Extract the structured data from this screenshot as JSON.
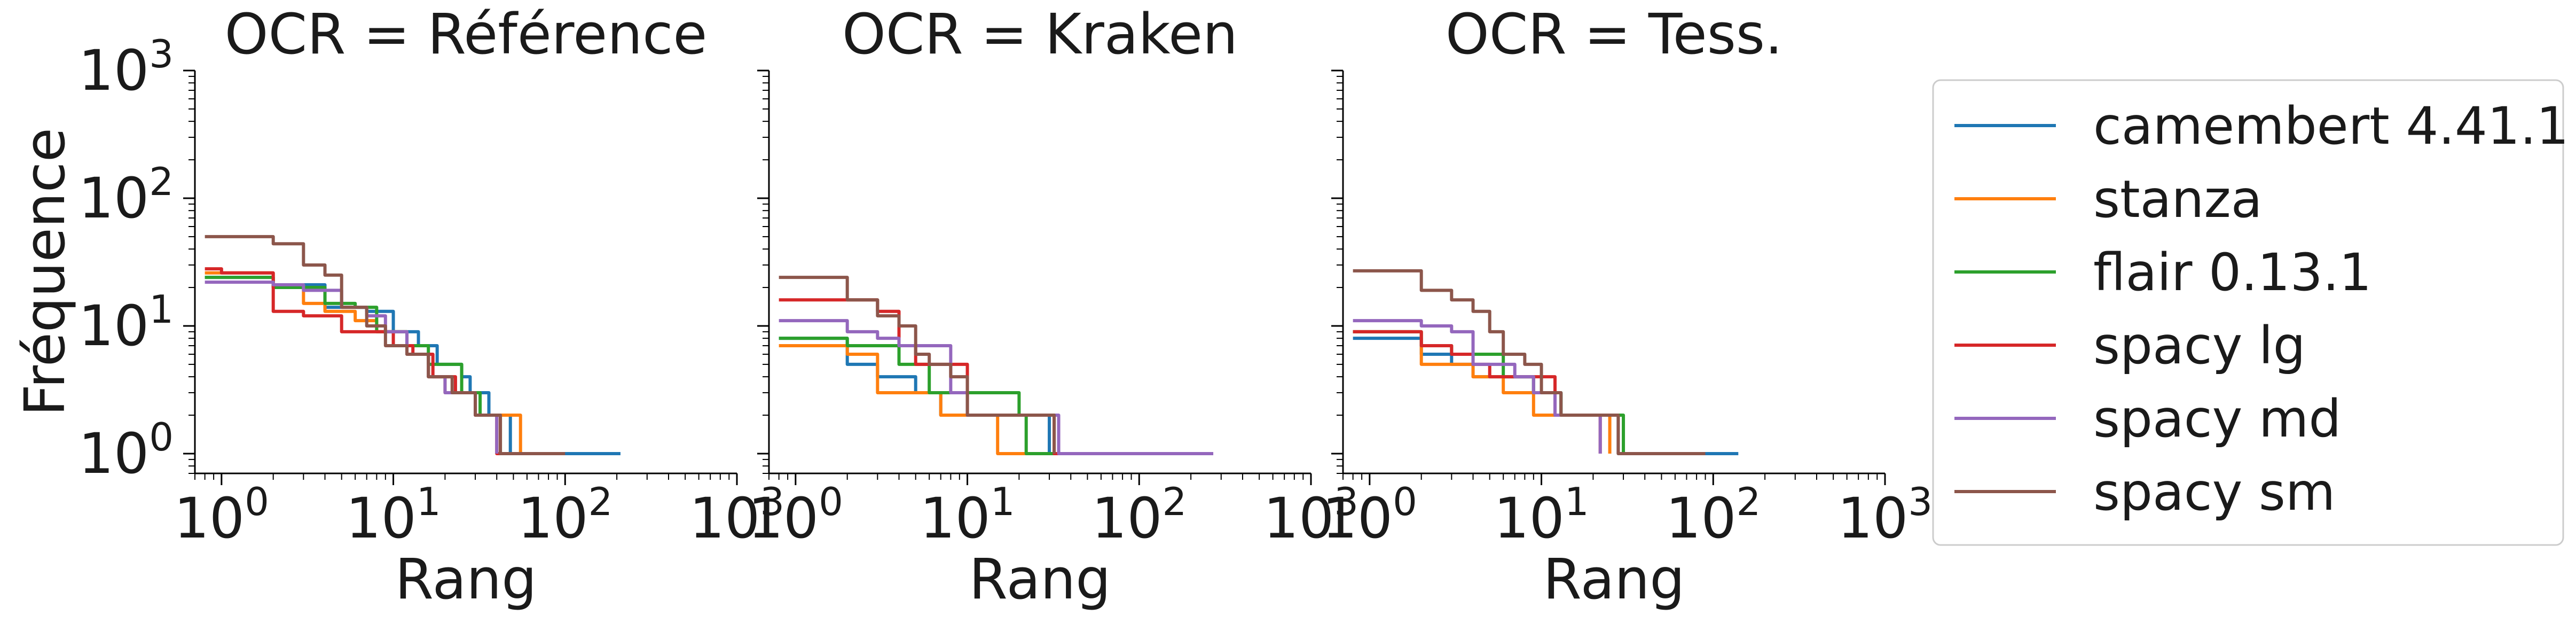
{
  "chart_data": [
    {
      "type": "line",
      "title": "OCR = Référence",
      "xlabel": "Rang",
      "ylabel": "Fréquence",
      "xscale": "log",
      "yscale": "log",
      "xlim": [
        0.7,
        1000
      ],
      "ylim": [
        0.7,
        1000
      ],
      "xticks": [
        "10^0",
        "10^1",
        "10^2",
        "10^3"
      ],
      "yticks": [
        "10^0",
        "10^1",
        "10^2",
        "10^3"
      ],
      "series": [
        {
          "name": "camembert 4.41.1",
          "x": [
            0.8,
            2,
            4,
            7,
            10,
            14,
            18,
            25,
            28,
            36,
            40,
            48,
            52,
            60,
            70,
            100,
            150,
            210
          ],
          "y": [
            24,
            21,
            14,
            13,
            9,
            7,
            5,
            4,
            3,
            2,
            2,
            1,
            1,
            1,
            1,
            1,
            1,
            1
          ]
        },
        {
          "name": "stanza",
          "x": [
            0.8,
            2,
            3,
            4,
            6,
            8,
            12,
            16,
            20,
            30,
            40,
            55
          ],
          "y": [
            26,
            20,
            15,
            13,
            11,
            9,
            6,
            4,
            3,
            2,
            2,
            1
          ]
        },
        {
          "name": "flair 0.13.1",
          "x": [
            0.8,
            2,
            4,
            6,
            8,
            12,
            16,
            25,
            32,
            42,
            60
          ],
          "y": [
            24,
            20,
            15,
            14,
            9,
            7,
            5,
            3,
            2,
            1,
            1
          ]
        },
        {
          "name": "spacy lg",
          "x": [
            0.8,
            1,
            2,
            3,
            5,
            7,
            10,
            13,
            17,
            23,
            30,
            40,
            45
          ],
          "y": [
            28,
            26,
            13,
            12,
            9,
            9,
            7,
            6,
            4,
            3,
            2,
            1,
            1
          ]
        },
        {
          "name": "spacy md",
          "x": [
            0.8,
            2,
            3,
            5,
            7,
            9,
            12,
            16,
            20,
            30,
            40
          ],
          "y": [
            22,
            21,
            19,
            14,
            12,
            9,
            6,
            4,
            3,
            2,
            1
          ]
        },
        {
          "name": "spacy sm",
          "x": [
            0.8,
            1,
            2,
            3,
            4,
            5,
            7,
            9,
            12,
            16,
            22,
            30,
            42,
            55,
            70,
            100
          ],
          "y": [
            50,
            50,
            44,
            30,
            25,
            14,
            10,
            7,
            6,
            4,
            3,
            2,
            1,
            1,
            1,
            1
          ]
        }
      ]
    },
    {
      "type": "line",
      "title": "OCR = Kraken",
      "xlabel": "Rang",
      "xscale": "log",
      "yscale": "log",
      "xlim": [
        0.7,
        1000
      ],
      "ylim": [
        0.7,
        1000
      ],
      "xticks": [
        "10^0",
        "10^1",
        "10^2",
        "10^3"
      ],
      "series": [
        {
          "name": "camembert 4.41.1",
          "x": [
            0.8,
            1,
            2,
            3,
            5,
            7,
            12,
            15,
            20,
            26,
            30,
            35,
            60,
            100,
            150
          ],
          "y": [
            8,
            8,
            5,
            4,
            3,
            2,
            2,
            2,
            2,
            2,
            1,
            1,
            1,
            1,
            1
          ]
        },
        {
          "name": "stanza",
          "x": [
            0.8,
            1,
            2,
            3,
            5,
            7,
            12,
            15,
            20,
            30,
            45,
            70
          ],
          "y": [
            7,
            7,
            6,
            3,
            3,
            2,
            2,
            1,
            1,
            1,
            1,
            1
          ]
        },
        {
          "name": "flair 0.13.1",
          "x": [
            0.8,
            1,
            2,
            3,
            4,
            6,
            10,
            14,
            20,
            22,
            30,
            50
          ],
          "y": [
            8,
            8,
            7,
            7,
            5,
            3,
            3,
            3,
            2,
            1,
            1,
            1
          ]
        },
        {
          "name": "spacy lg",
          "x": [
            0.8,
            1,
            2,
            3,
            4,
            5,
            7,
            10,
            14,
            20,
            25,
            32,
            40
          ],
          "y": [
            16,
            16,
            16,
            13,
            7,
            5,
            5,
            2,
            2,
            2,
            2,
            1,
            1
          ]
        },
        {
          "name": "spacy md",
          "x": [
            0.8,
            1,
            2,
            3,
            4,
            5,
            7,
            8,
            10,
            14,
            20,
            28,
            34,
            80,
            150,
            270
          ],
          "y": [
            11,
            11,
            9,
            8,
            7,
            7,
            7,
            3,
            2,
            2,
            2,
            2,
            1,
            1,
            1,
            1
          ]
        },
        {
          "name": "spacy sm",
          "x": [
            0.8,
            1,
            2,
            3,
            4,
            5,
            6,
            8,
            10,
            14,
            20,
            25,
            32
          ],
          "y": [
            24,
            24,
            16,
            12,
            10,
            6,
            5,
            4,
            2,
            2,
            2,
            2,
            1
          ]
        }
      ]
    },
    {
      "type": "line",
      "title": "OCR = Tess.",
      "xlabel": "Rang",
      "xscale": "log",
      "yscale": "log",
      "xlim": [
        0.7,
        1000
      ],
      "ylim": [
        0.7,
        1000
      ],
      "xticks": [
        "10^0",
        "10^1",
        "10^2",
        "10^3"
      ],
      "series": [
        {
          "name": "camembert 4.41.1",
          "x": [
            0.8,
            1,
            2,
            3,
            4,
            6,
            9,
            13,
            18,
            25,
            28,
            40,
            70,
            100,
            140
          ],
          "y": [
            8,
            8,
            6,
            5,
            4,
            4,
            3,
            2,
            2,
            2,
            1,
            1,
            1,
            1,
            1
          ]
        },
        {
          "name": "stanza",
          "x": [
            0.8,
            1,
            2,
            3,
            4,
            6,
            9,
            12,
            18,
            25
          ],
          "y": [
            9,
            9,
            5,
            5,
            4,
            3,
            2,
            2,
            2,
            1
          ]
        },
        {
          "name": "flair 0.13.1",
          "x": [
            0.8,
            1,
            2,
            3,
            4,
            6,
            9,
            13,
            18,
            26,
            30
          ],
          "y": [
            9,
            9,
            7,
            6,
            6,
            4,
            3,
            2,
            2,
            2,
            1
          ]
        },
        {
          "name": "spacy lg",
          "x": [
            0.8,
            1,
            2,
            3,
            4,
            5,
            7,
            9,
            12,
            18,
            22
          ],
          "y": [
            9,
            9,
            7,
            6,
            5,
            4,
            4,
            4,
            2,
            2,
            1
          ]
        },
        {
          "name": "spacy md",
          "x": [
            0.8,
            1,
            2,
            3,
            4,
            5,
            7,
            9,
            12,
            18,
            22
          ],
          "y": [
            11,
            11,
            10,
            9,
            5,
            5,
            4,
            3,
            2,
            2,
            1
          ]
        },
        {
          "name": "spacy sm",
          "x": [
            0.8,
            1,
            2,
            3,
            4,
            5,
            6,
            8,
            10,
            13,
            20,
            28,
            40,
            90
          ],
          "y": [
            27,
            27,
            19,
            16,
            13,
            9,
            6,
            5,
            3,
            2,
            2,
            1,
            1,
            1
          ]
        }
      ]
    }
  ],
  "legend": {
    "placement": "right",
    "entries": [
      {
        "label": "camembert 4.41.1",
        "color": "#1f77b4"
      },
      {
        "label": "stanza",
        "color": "#ff7f0e"
      },
      {
        "label": "flair 0.13.1",
        "color": "#2ca02c"
      },
      {
        "label": "spacy lg",
        "color": "#d62728"
      },
      {
        "label": "spacy md",
        "color": "#9467bd"
      },
      {
        "label": "spacy sm",
        "color": "#8c564b"
      }
    ]
  }
}
